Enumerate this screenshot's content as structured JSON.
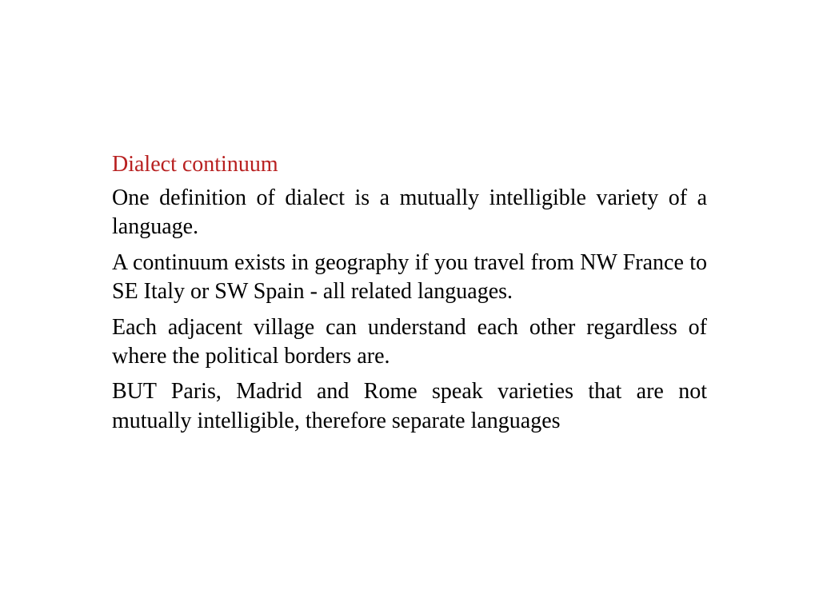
{
  "slide": {
    "heading": "Dialect continuum",
    "paragraphs": [
      "One definition of dialect is a mutually intelligible variety of a language.",
      "A continuum exists in geography if you travel from NW France to SE Italy or SW Spain - all related languages.",
      "Each adjacent village can understand each other regardless of where the political borders are.",
      "BUT Paris, Madrid and Rome speak varieties that are not mutually intelligible, therefore separate languages"
    ],
    "colors": {
      "heading": "#b82020",
      "body_text": "#000000",
      "background": "#ffffff"
    },
    "typography": {
      "font_family": "Times New Roman",
      "heading_fontsize": 28,
      "body_fontsize": 28,
      "line_height": 1.3,
      "body_alignment": "justify"
    }
  }
}
